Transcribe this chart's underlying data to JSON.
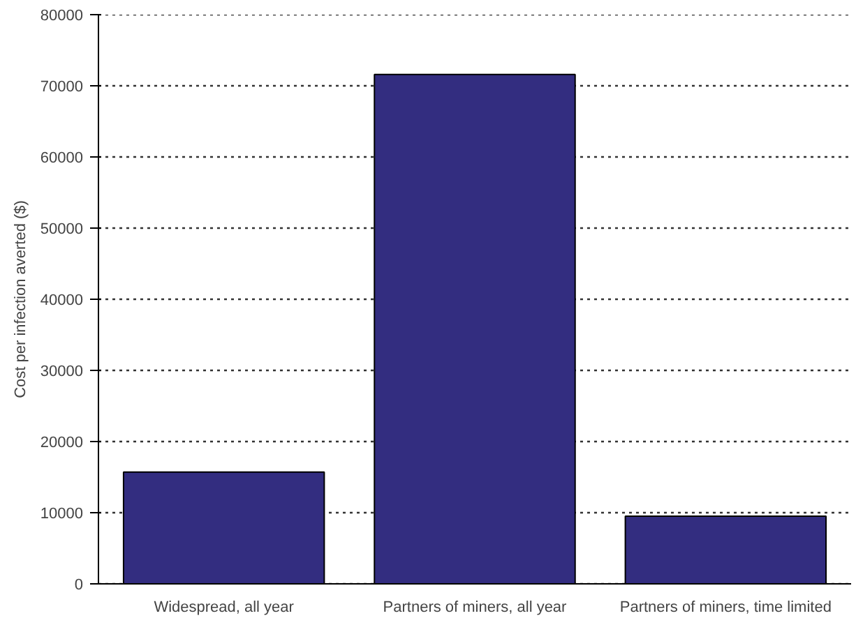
{
  "chart_data": {
    "type": "bar",
    "ylabel": "Cost per infection averted ($)",
    "categories": [
      "Widespread, all year",
      "Partners of miners, all year",
      "Partners of miners, time limited"
    ],
    "values": [
      15700,
      71600,
      9500
    ],
    "color": "#332d80",
    "ylim": [
      0,
      80000
    ],
    "yticks": [
      0,
      10000,
      20000,
      30000,
      40000,
      50000,
      60000,
      70000,
      80000
    ],
    "grid": "y"
  }
}
